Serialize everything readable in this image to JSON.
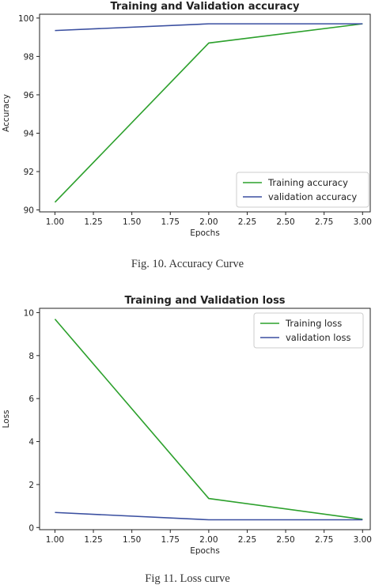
{
  "chart_data": [
    {
      "type": "line",
      "title": "Training and Validation accuracy",
      "xlabel": "Epochs",
      "ylabel": "Accuracy",
      "xlim": [
        0.9,
        3.05
      ],
      "ylim": [
        89.9,
        100.2
      ],
      "x_ticks": [
        "1.00",
        "1.25",
        "1.50",
        "1.75",
        "2.00",
        "2.25",
        "2.50",
        "2.75",
        "3.00"
      ],
      "y_ticks": [
        "90",
        "92",
        "94",
        "96",
        "98",
        "100"
      ],
      "x": [
        1.0,
        2.0,
        3.0
      ],
      "series": [
        {
          "name": "Training accuracy",
          "values": [
            90.4,
            98.7,
            99.7
          ],
          "color": "#2ca02c"
        },
        {
          "name": "validation accuracy",
          "values": [
            99.35,
            99.7,
            99.7
          ],
          "color": "#3a4fa0"
        }
      ],
      "legend": "lower-right",
      "grid": false,
      "caption": "Fig. 10. Accuracy Curve"
    },
    {
      "type": "line",
      "title": "Training and Validation loss",
      "xlabel": "Epochs",
      "ylabel": "Loss",
      "xlim": [
        0.9,
        3.05
      ],
      "ylim": [
        -0.1,
        10.2
      ],
      "x_ticks": [
        "1.00",
        "1.25",
        "1.50",
        "1.75",
        "2.00",
        "2.25",
        "2.50",
        "2.75",
        "3.00"
      ],
      "y_ticks": [
        "0",
        "2",
        "4",
        "6",
        "8",
        "10"
      ],
      "x": [
        1.0,
        2.0,
        3.0
      ],
      "series": [
        {
          "name": "Training loss",
          "values": [
            9.7,
            1.35,
            0.38
          ],
          "color": "#2ca02c"
        },
        {
          "name": "validation loss",
          "values": [
            0.7,
            0.36,
            0.36
          ],
          "color": "#3a4fa0"
        }
      ],
      "legend": "upper-right",
      "grid": false,
      "caption": "Fig 11. Loss curve"
    }
  ]
}
